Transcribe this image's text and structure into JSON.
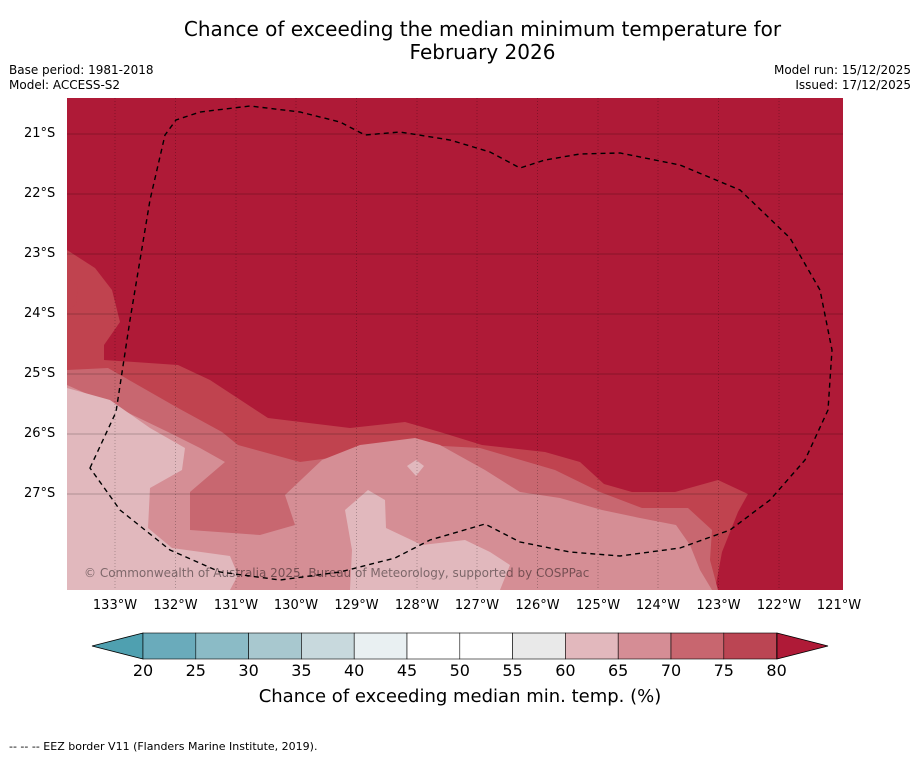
{
  "title_line1": "Chance of exceeding the median minimum temperature for",
  "title_line2": "February 2026",
  "base_period": "Base period: 1981-2018",
  "model": "Model: ACCESS-S2",
  "model_run": "Model run: 15/12/2025",
  "issued": "Issued: 17/12/2025",
  "copyright": "© Commonwealth of Australia 2025, Bureau of Meteorology, supported by COSPPac",
  "latitudes": [
    "21°S",
    "22°S",
    "23°S",
    "24°S",
    "25°S",
    "26°S",
    "27°S"
  ],
  "longitudes": [
    "133°W",
    "132°W",
    "131°W",
    "130°W",
    "129°W",
    "128°W",
    "127°W",
    "126°W",
    "125°W",
    "124°W",
    "123°W",
    "122°W",
    "121°W"
  ],
  "colorbar": {
    "ticks": [
      "20",
      "25",
      "30",
      "35",
      "40",
      "45",
      "50",
      "55",
      "60",
      "65",
      "70",
      "75",
      "80"
    ],
    "label": "Chance of exceeding median min. temp. (%)",
    "colors": [
      "#6aabbb",
      "#8bbbc6",
      "#a8c8cf",
      "#c8d9dd",
      "#e9f0f2",
      "#ffffff",
      "#ffffff",
      "#e9e9e9",
      "#e2b8bd",
      "#d58d95",
      "#c8666f",
      "#bb4553"
    ],
    "low_extend_color": "#4fa0b0",
    "high_extend_color": "#af1a37"
  },
  "map_colors": {
    "band_80": "#af1a37",
    "band_75": "#c0434f",
    "band_70": "#c86770",
    "band_65": "#d58e95",
    "band_60": "#e1b8bd"
  },
  "footer": "--  --  -- EEZ border V11 (Flanders Marine Institute, 2019)."
}
